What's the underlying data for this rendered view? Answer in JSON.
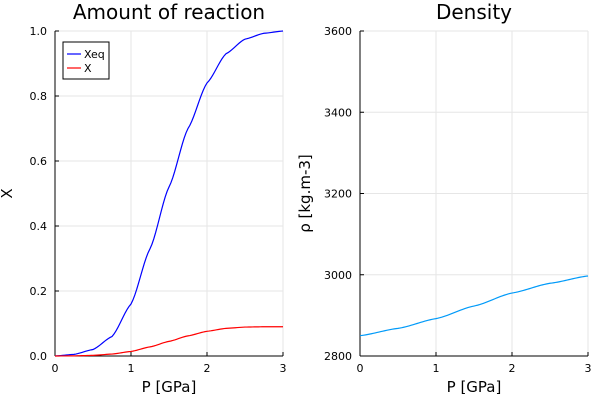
{
  "chart_data": [
    {
      "type": "line",
      "title": "Amount of reaction",
      "xlabel": "P [GPa]",
      "ylabel": "X",
      "xlim": [
        0,
        3
      ],
      "ylim": [
        0,
        1
      ],
      "xticks": [
        "0",
        "1",
        "2",
        "3"
      ],
      "yticks": [
        "0.0",
        "0.2",
        "0.4",
        "0.6",
        "0.8",
        "1.0"
      ],
      "grid": true,
      "legend_position": "top-left",
      "x": [
        0,
        0.25,
        0.5,
        0.75,
        1.0,
        1.25,
        1.5,
        1.75,
        2.0,
        2.25,
        2.5,
        2.75,
        3.0
      ],
      "series": [
        {
          "name": "Xeq",
          "color": "#0000ff",
          "values": [
            0.0,
            0.005,
            0.02,
            0.06,
            0.16,
            0.33,
            0.52,
            0.7,
            0.84,
            0.93,
            0.975,
            0.993,
            1.0
          ]
        },
        {
          "name": "X",
          "color": "#ff0000",
          "values": [
            0.0,
            0.0005,
            0.002,
            0.006,
            0.014,
            0.028,
            0.045,
            0.062,
            0.076,
            0.085,
            0.089,
            0.09,
            0.09
          ]
        }
      ]
    },
    {
      "type": "line",
      "title": "Density",
      "xlabel": "P [GPa]",
      "ylabel": "ρ [kg.m-3]",
      "xlim": [
        0,
        3
      ],
      "ylim": [
        2800,
        3600
      ],
      "xticks": [
        "0",
        "1",
        "2",
        "3"
      ],
      "yticks": [
        "2800",
        "3000",
        "3200",
        "3400",
        "3600"
      ],
      "grid": true,
      "x": [
        0,
        0.5,
        1.0,
        1.5,
        2.0,
        2.5,
        3.0
      ],
      "series": [
        {
          "color": "#009af9",
          "values": [
            2850,
            2868,
            2892,
            2923,
            2955,
            2979,
            2997
          ]
        }
      ]
    }
  ]
}
